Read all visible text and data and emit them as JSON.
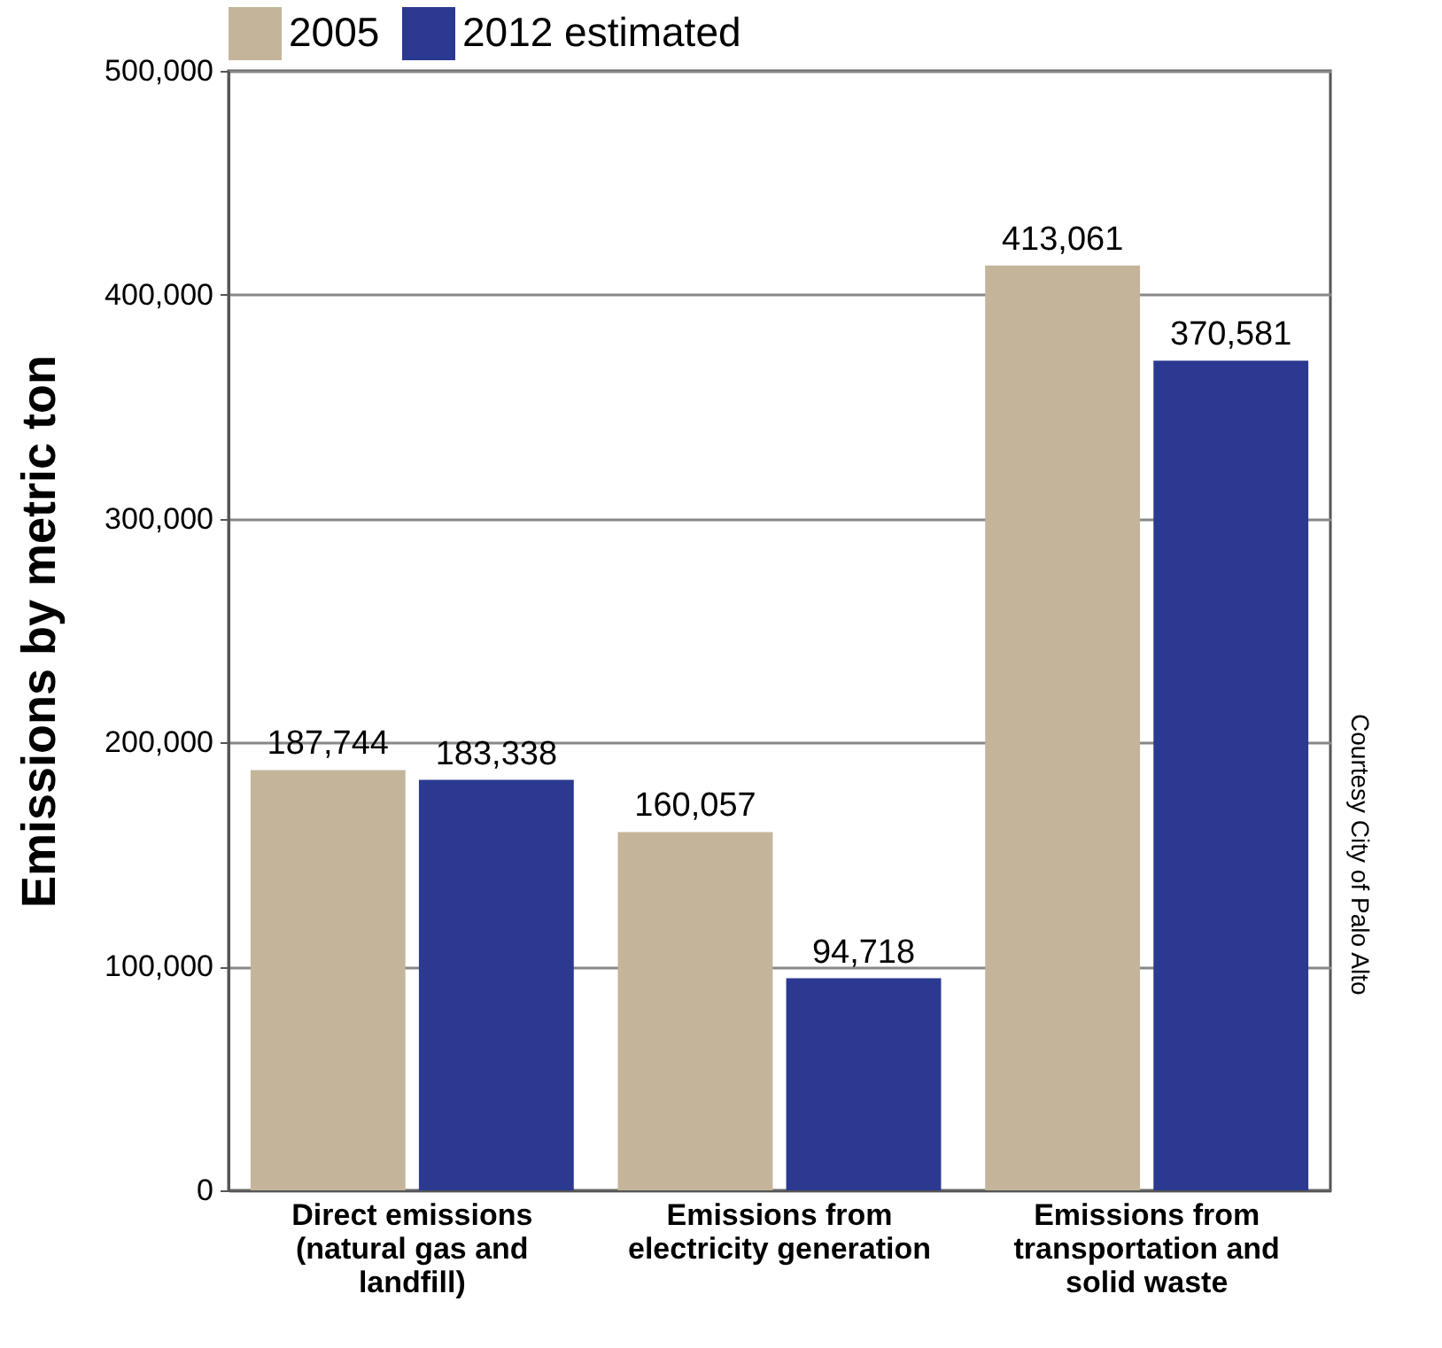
{
  "chart_data": {
    "type": "bar",
    "ylabel": "Emissions by metric ton",
    "categories": [
      "Direct emissions (natural gas and landfill)",
      "Emissions from electricity generation",
      "Emissions from transportation and solid waste"
    ],
    "series": [
      {
        "name": "2005",
        "color": "#c4b59a",
        "values": [
          187744,
          160057,
          413061
        ],
        "value_labels": [
          "187,744",
          "160,057",
          "413,061"
        ]
      },
      {
        "name": "2012 estimated",
        "color": "#2b3990",
        "values": [
          183338,
          94718,
          370581
        ],
        "value_labels": [
          "183,338",
          "94,718",
          "370,581"
        ]
      }
    ],
    "ylim": [
      0,
      500000
    ],
    "yticks": [
      0,
      {
        "value": 100000,
        "label": "100,000"
      },
      {
        "value": 200000,
        "label": "200,000"
      },
      {
        "value": 300000,
        "label": "300,000"
      },
      {
        "value": 400000,
        "label": "400,000"
      },
      {
        "value": 500000,
        "label": "500,000"
      }
    ],
    "grid": "y",
    "legend": "top",
    "annotations": [
      "Courtesy City of Palo Alto"
    ]
  }
}
